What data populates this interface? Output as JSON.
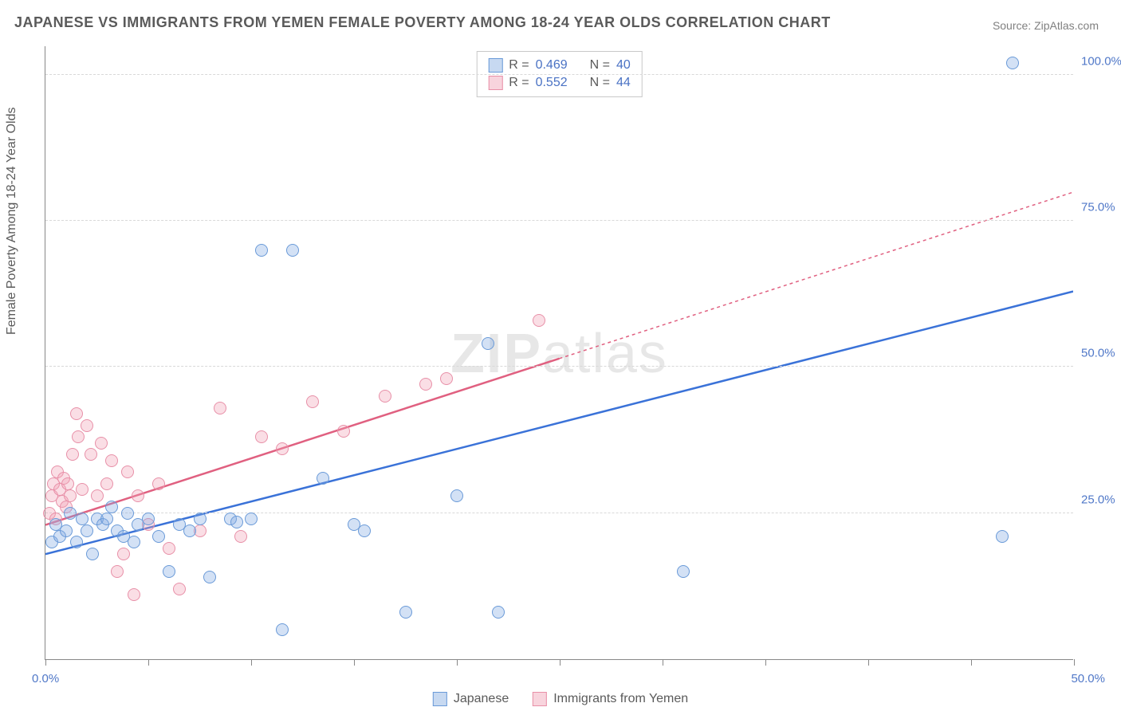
{
  "title": "JAPANESE VS IMMIGRANTS FROM YEMEN FEMALE POVERTY AMONG 18-24 YEAR OLDS CORRELATION CHART",
  "source": "Source: ZipAtlas.com",
  "ylabel": "Female Poverty Among 18-24 Year Olds",
  "watermark": {
    "bold": "ZIP",
    "thin": "atlas"
  },
  "chart": {
    "type": "scatter",
    "xlim": [
      0,
      50
    ],
    "ylim": [
      0,
      105
    ],
    "xtick_positions": [
      0,
      5,
      10,
      15,
      20,
      25,
      30,
      35,
      40,
      45,
      50
    ],
    "xtick_labels": {
      "0": "0.0%",
      "50": "50.0%"
    },
    "ytick_positions": [
      25,
      50,
      75,
      100
    ],
    "ytick_labels": [
      "25.0%",
      "50.0%",
      "75.0%",
      "100.0%"
    ],
    "grid_color": "#d8d8d8",
    "background_color": "#ffffff",
    "axis_color": "#888888",
    "marker_size": 16,
    "series": {
      "blue": {
        "label": "Japanese",
        "R": "0.469",
        "N": "40",
        "fill": "rgba(130,170,225,0.35)",
        "stroke": "#6a9ad8",
        "trend_color": "#3a72d8",
        "trend_dash": "none",
        "trend": {
          "x1": 0,
          "y1": 18,
          "x2": 50,
          "y2": 63
        },
        "points": [
          [
            0.3,
            20
          ],
          [
            0.5,
            23
          ],
          [
            0.7,
            21
          ],
          [
            1.0,
            22
          ],
          [
            1.2,
            25
          ],
          [
            1.5,
            20
          ],
          [
            1.8,
            24
          ],
          [
            2.0,
            22
          ],
          [
            2.3,
            18
          ],
          [
            2.5,
            24
          ],
          [
            2.8,
            23
          ],
          [
            3.0,
            24
          ],
          [
            3.2,
            26
          ],
          [
            3.5,
            22
          ],
          [
            3.8,
            21
          ],
          [
            4.0,
            25
          ],
          [
            4.3,
            20
          ],
          [
            4.5,
            23
          ],
          [
            5.0,
            24
          ],
          [
            5.5,
            21
          ],
          [
            6.0,
            15
          ],
          [
            6.5,
            23
          ],
          [
            7.0,
            22
          ],
          [
            7.5,
            24
          ],
          [
            8.0,
            14
          ],
          [
            9.0,
            24
          ],
          [
            9.3,
            23.5
          ],
          [
            10.0,
            24
          ],
          [
            10.5,
            70
          ],
          [
            12.0,
            70
          ],
          [
            11.5,
            5
          ],
          [
            13.5,
            31
          ],
          [
            15.0,
            23
          ],
          [
            15.5,
            22
          ],
          [
            17.5,
            8
          ],
          [
            20.0,
            28
          ],
          [
            21.5,
            54
          ],
          [
            22.0,
            8
          ],
          [
            31.0,
            15
          ],
          [
            47.0,
            102
          ],
          [
            46.5,
            21
          ]
        ]
      },
      "pink": {
        "label": "Immigrants from Yemen",
        "R": "0.552",
        "N": "44",
        "fill": "rgba(240,160,180,0.35)",
        "stroke": "#e890a8",
        "trend_color": "#e06080",
        "trend_dash": "4 4",
        "trend_solid_until": 25,
        "trend": {
          "x1": 0,
          "y1": 23,
          "x2": 50,
          "y2": 80
        },
        "points": [
          [
            0.2,
            25
          ],
          [
            0.3,
            28
          ],
          [
            0.4,
            30
          ],
          [
            0.5,
            24
          ],
          [
            0.6,
            32
          ],
          [
            0.7,
            29
          ],
          [
            0.8,
            27
          ],
          [
            0.9,
            31
          ],
          [
            1.0,
            26
          ],
          [
            1.1,
            30
          ],
          [
            1.2,
            28
          ],
          [
            1.3,
            35
          ],
          [
            1.5,
            42
          ],
          [
            1.6,
            38
          ],
          [
            1.8,
            29
          ],
          [
            2.0,
            40
          ],
          [
            2.2,
            35
          ],
          [
            2.5,
            28
          ],
          [
            2.7,
            37
          ],
          [
            3.0,
            30
          ],
          [
            3.2,
            34
          ],
          [
            3.5,
            15
          ],
          [
            3.8,
            18
          ],
          [
            4.0,
            32
          ],
          [
            4.3,
            11
          ],
          [
            4.5,
            28
          ],
          [
            5.0,
            23
          ],
          [
            5.5,
            30
          ],
          [
            6.0,
            19
          ],
          [
            6.5,
            12
          ],
          [
            7.5,
            22
          ],
          [
            8.5,
            43
          ],
          [
            9.5,
            21
          ],
          [
            10.5,
            38
          ],
          [
            11.5,
            36
          ],
          [
            13.0,
            44
          ],
          [
            14.5,
            39
          ],
          [
            16.5,
            45
          ],
          [
            18.5,
            47
          ],
          [
            19.5,
            48
          ],
          [
            24.0,
            58
          ]
        ]
      }
    }
  },
  "legend": {
    "series1": "Japanese",
    "series2": "Immigrants from Yemen"
  }
}
